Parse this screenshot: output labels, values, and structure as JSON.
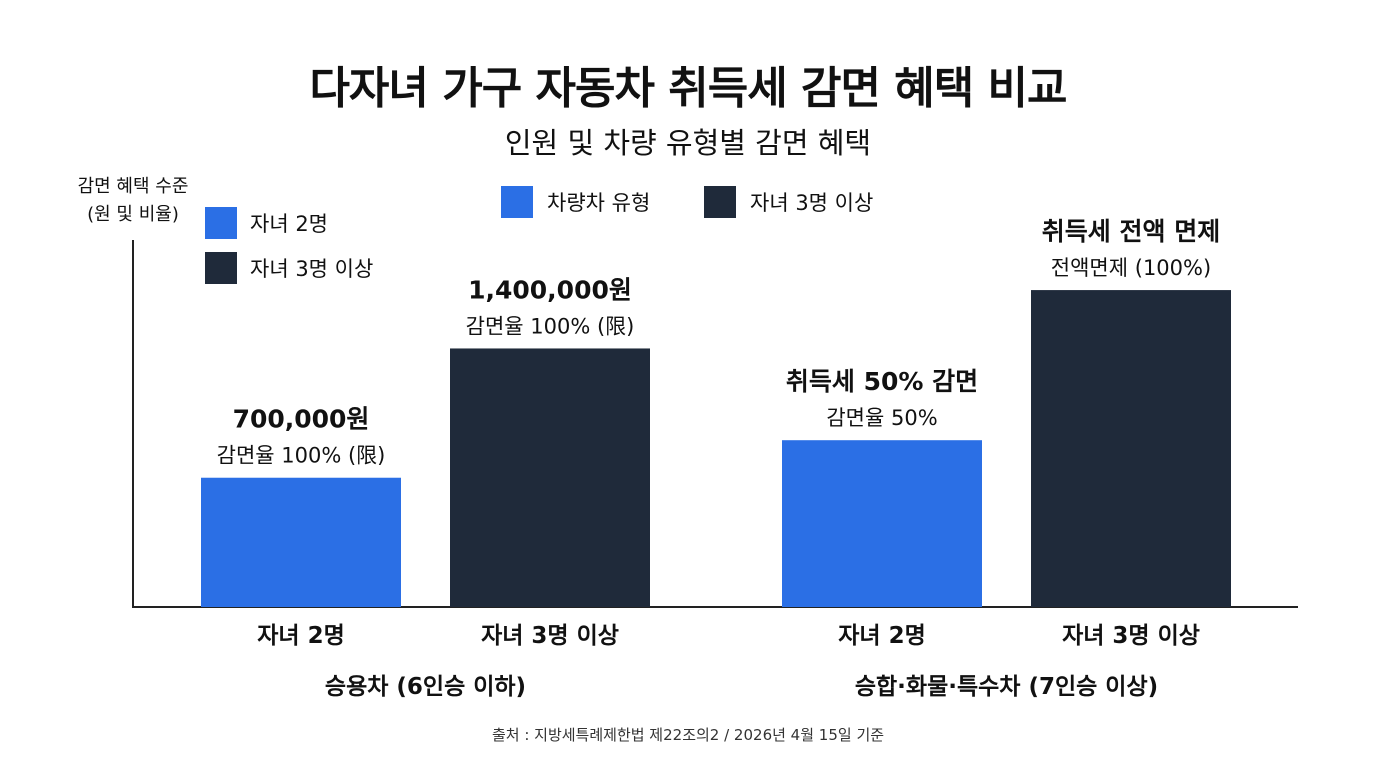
{
  "title": "다자녀 가구 자동차 취득세 감면 혜택 비교",
  "subtitle": "인원 및 차량 유형별 감면 혜택",
  "source": "출처 : 지방세특례제한법 제22조의2 / 2026년 4월 15일 기준",
  "colors": {
    "two_children": "#2b6fe5",
    "three_plus": "#1f2a3a",
    "axis": "#222222"
  },
  "legends": {
    "left": [
      {
        "label": "자녀 2명",
        "color": "#2b6fe5"
      },
      {
        "label": "자녀 3명 이상",
        "color": "#1f2a3a"
      }
    ],
    "top": [
      {
        "label": "차량차 유형",
        "color": "#2b6fe5"
      },
      {
        "label": "자녀 3명 이상",
        "color": "#1f2a3a"
      }
    ]
  },
  "chart_data": {
    "type": "bar",
    "ylabel": "감면 혜택 수준\n(원 및 비율)",
    "ylim": [
      0,
      1.0
    ],
    "groups": [
      {
        "label": "승용차 (6인승 이하)",
        "bars": [
          {
            "category": "자녀 2명",
            "series": "자녀 2명",
            "level": 0.31,
            "value_label": "700,000원",
            "rate_label": "감면율 100% (限)",
            "color": "#2b6fe5"
          },
          {
            "category": "자녀 3명 이상",
            "series": "자녀 3명 이상",
            "level": 0.62,
            "value_label": "1,400,000원",
            "rate_label": "감면율 100% (限)",
            "color": "#1f2a3a"
          }
        ]
      },
      {
        "label": "승합·화물·특수차 (7인승 이상)",
        "bars": [
          {
            "category": "자녀 2명",
            "series": "자녀 2명",
            "level": 0.4,
            "value_label": "취득세 50% 감면",
            "rate_label": "감면율 50%",
            "color": "#2b6fe5"
          },
          {
            "category": "자녀 3명 이상",
            "series": "자녀 3명 이상",
            "level": 0.76,
            "value_label": "취득세 전액 면제",
            "rate_label": "전액면제 (100%)",
            "color": "#1f2a3a"
          }
        ]
      }
    ]
  }
}
